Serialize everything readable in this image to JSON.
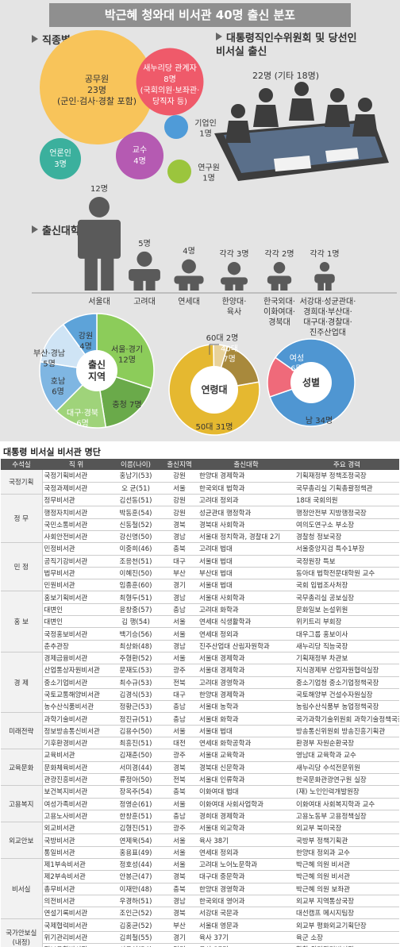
{
  "title": "박근혜 청와대 비서관 40명 출신 분포",
  "sections": {
    "occupation": "직종별",
    "transition": "대통령직인수위원회 및 당선인\n비서실 출신",
    "university": "출신대학"
  },
  "colors": {
    "civil": "#f8c45a",
    "party": "#ef5a6a",
    "business": "#4f9bd8",
    "professor": "#b55ab2",
    "media": "#3bb09d",
    "research": "#9bc53d",
    "figure": "#5a5a5a",
    "region_green": "#6aaa4a",
    "age_gold": "#e5b830",
    "gender_blue": "#4f96d2"
  },
  "chart_data": [
    {
      "type": "bubble",
      "title": "직종별",
      "bubbles": [
        {
          "label": "공무원",
          "value": 23,
          "value_text": "23명",
          "note": "(군인·검사·경찰 포함)"
        },
        {
          "label": "새누리당 관계자",
          "value": 8,
          "value_text": "8명",
          "note": "(국회의원·보좌관·\n당직자 등)"
        },
        {
          "label": "기업인",
          "value": 1,
          "value_text": "1명"
        },
        {
          "label": "교수",
          "value": 4,
          "value_text": "4명"
        },
        {
          "label": "언론인",
          "value": 3,
          "value_text": "3명"
        },
        {
          "label": "연구원",
          "value": 1,
          "value_text": "1명"
        }
      ]
    },
    {
      "type": "figure",
      "title": "대통령직인수위원회 및 당선인 비서실 출신",
      "value": 22,
      "text": "22명 (기타 18명)"
    },
    {
      "type": "bar",
      "title": "출신대학",
      "categories": [
        "서울대",
        "고려대",
        "연세대",
        "한양대·\n육사",
        "한국외대·\n이화여대·\n경북대",
        "서강대·성균관대·\n경희대·부산대·\n대구대·경찰대·\n진주산업대"
      ],
      "values": [
        12,
        5,
        4,
        3,
        2,
        1
      ],
      "value_labels": [
        "12명",
        "5명",
        "4명",
        "각각 3명",
        "각각 2명",
        "각각 1명"
      ]
    },
    {
      "type": "pie",
      "title": "출신\n지역",
      "slices": [
        {
          "label": "서울·경기\n12명",
          "value": 12
        },
        {
          "label": "충청 7명",
          "value": 7
        },
        {
          "label": "대구·경북\n6명",
          "value": 6
        },
        {
          "label": "호남\n6명",
          "value": 6
        },
        {
          "label": "부산·경남\n5명",
          "value": 5
        },
        {
          "label": "강원\n4명",
          "value": 4
        }
      ]
    },
    {
      "type": "pie",
      "title": "연령대",
      "slices": [
        {
          "label": "50대 31명",
          "value": 31
        },
        {
          "label": "60대 2명",
          "value": 2
        },
        {
          "label": "40대\n7명",
          "value": 7
        }
      ]
    },
    {
      "type": "pie",
      "title": "성별",
      "slices": [
        {
          "label": "남 34명",
          "value": 34
        },
        {
          "label": "여성\n6명",
          "value": 6
        }
      ]
    }
  ],
  "roster": {
    "title": "대통령 비서실 비서관 명단",
    "headers": [
      "수석실",
      "직 위",
      "이름(나이)",
      "출신지역",
      "출신대학",
      "주요 경력"
    ],
    "groups": [
      {
        "name": "국정기획",
        "rows": [
          [
            "국정기획비서관",
            "홍남기(53)",
            "강원",
            "한양대 경제학과",
            "기획재정부 정책조정국장"
          ],
          [
            "국정과제비서관",
            "오 균(51)",
            "서울",
            "한국외대 법학과",
            "국무총리실 기획총괄정책관"
          ]
        ]
      },
      {
        "name": "정 무",
        "rows": [
          [
            "정무비서관",
            "김선동(51)",
            "강원",
            "고려대 정외과",
            "18대 국회의원"
          ],
          [
            "행정자치비서관",
            "박동훈(54)",
            "강원",
            "성균관대 행정학과",
            "행정안전부 지방행정국장"
          ],
          [
            "국민소통비서관",
            "신동철(52)",
            "경북",
            "경북대 사회학과",
            "여의도연구소 부소장"
          ],
          [
            "사회안전비서관",
            "강신명(50)",
            "경남",
            "서울대 정치학과, 경찰대 2기",
            "경찰청 정보국장"
          ]
        ]
      },
      {
        "name": "민 정",
        "rows": [
          [
            "민정비서관",
            "이중희(46)",
            "충북",
            "고려대 법대",
            "서울중앙지검 특수1부장"
          ],
          [
            "공직기강비서관",
            "조응천(51)",
            "대구",
            "서울대 법대",
            "국정원장 특보"
          ],
          [
            "법무비서관",
            "이혜진(50)",
            "부산",
            "부산대 법대",
            "동아대 법학전문대학원 교수"
          ],
          [
            "민원비서관",
            "임종훈(60)",
            "경기",
            "서울대 법대",
            "국회 입법조사처장"
          ]
        ]
      },
      {
        "name": "홍 보",
        "rows": [
          [
            "홍보기획비서관",
            "최형두(51)",
            "경남",
            "서울대 사회학과",
            "국무총리실 공보실장"
          ],
          [
            "대변인",
            "윤창중(57)",
            "충남",
            "고려대 화학과",
            "문화일보 논설위원"
          ],
          [
            "대변인",
            "김 행(54)",
            "서울",
            "연세대 식생활학과",
            "위키트리 부회장"
          ],
          [
            "국정홍보비서관",
            "백기승(56)",
            "서울",
            "연세대 정외과",
            "대우그룹 홍보이사"
          ],
          [
            "춘추관장",
            "최상화(48)",
            "경남",
            "진주산업대 산림자원학과",
            "새누리당 직능국장"
          ]
        ]
      },
      {
        "name": "경 제",
        "rows": [
          [
            "경제금융비서관",
            "주형환(52)",
            "서울",
            "서울대 경제학과",
            "기획재정부 차관보"
          ],
          [
            "산업통상자원비서관",
            "문재도(53)",
            "광주",
            "서울대 경제학과",
            "지식경제부 산업자원협력실장"
          ],
          [
            "중소기업비서관",
            "최수규(53)",
            "전북",
            "고려대 경영학과",
            "중소기업청 중소기업정책국장"
          ],
          [
            "국토교통해양비서관",
            "김경식(53)",
            "대구",
            "한양대 경제학과",
            "국토해양부 건설수자원실장"
          ],
          [
            "농수산식품비서관",
            "정황근(53)",
            "충남",
            "서울대 농학과",
            "농림수산식품부 농업정책국장"
          ]
        ]
      },
      {
        "name": "미래전략",
        "rows": [
          [
            "과학기술비서관",
            "정진규(51)",
            "충남",
            "서울대 화학과",
            "국가과학기술위원회 과학기술정책국장"
          ],
          [
            "정보방송통신비서관",
            "김용수(50)",
            "서울",
            "서울대 법대",
            "방송통신위원회 방송진흥기획관"
          ],
          [
            "기후환경비서관",
            "최흥진(51)",
            "대전",
            "연세대 화학공학과",
            "환경부 자원순환국장"
          ]
        ]
      },
      {
        "name": "교육문화",
        "rows": [
          [
            "교육비서관",
            "김재춘(50)",
            "광주",
            "서울대 교육학과",
            "영남대 교육학과 교수"
          ],
          [
            "문화체육비서관",
            "서미경(44)",
            "경북",
            "경북대 신문학과",
            "새누리당 수석전문위원"
          ],
          [
            "관광진흥비서관",
            "류정아(50)",
            "전북",
            "서울대 인류학과",
            "한국문화관광연구원 실장"
          ]
        ]
      },
      {
        "name": "고용복지",
        "rows": [
          [
            "보건복지비서관",
            "장옥주(54)",
            "충북",
            "이화여대 법대",
            "(재) 노인인력개발원장"
          ],
          [
            "여성가족비서관",
            "정영순(61)",
            "서울",
            "이화여대 사회사업학과",
            "이화여대 사회복지학과 교수"
          ],
          [
            "고용노사비서관",
            "한창훈(51)",
            "충남",
            "경희대 경제학과",
            "고용노동부 고용정책실장"
          ]
        ]
      },
      {
        "name": "외교안보",
        "rows": [
          [
            "외교비서관",
            "김형진(51)",
            "광주",
            "서울대 외교학과",
            "외교부 북미국장"
          ],
          [
            "국방비서관",
            "연제욱(54)",
            "서울",
            "육사 38기",
            "국방부 정책기획관"
          ],
          [
            "통일비서관",
            "홍용표(49)",
            "서울",
            "연세대 정외과",
            "한양대 정외과 교수"
          ]
        ]
      },
      {
        "name": "비서실",
        "rows": [
          [
            "제1부속비서관",
            "정호성(44)",
            "서울",
            "고려대 노어노문학과",
            "박근혜 의원 비서관"
          ],
          [
            "제2부속비서관",
            "안봉근(47)",
            "경북",
            "대구대 중문학과",
            "박근혜 의원 비서관"
          ],
          [
            "총무비서관",
            "이재만(48)",
            "충북",
            "한양대 경영학과",
            "박근혜 의원 보좌관"
          ],
          [
            "의전비서관",
            "우경하(51)",
            "경남",
            "한국외대 영어과",
            "외교부 지역통상국장"
          ],
          [
            "연설기록비서관",
            "조인근(52)",
            "경북",
            "서강대 국문과",
            "대선캠프 메시지팀장"
          ]
        ]
      },
      {
        "name": "국가안보실\n(내정)",
        "rows": [
          [
            "국제협력비서관",
            "김홍균(52)",
            "부산",
            "서울대 영문과",
            "외교부 평화외교기획단장"
          ],
          [
            "위기관리비서관",
            "김희철(55)",
            "경기",
            "육사 37기",
            "육군 소장"
          ],
          [
            "정보융합비서관",
            "서용석(54)",
            "경기",
            "육사 37기",
            "합참 위기관리비서관"
          ]
        ]
      }
    ]
  }
}
